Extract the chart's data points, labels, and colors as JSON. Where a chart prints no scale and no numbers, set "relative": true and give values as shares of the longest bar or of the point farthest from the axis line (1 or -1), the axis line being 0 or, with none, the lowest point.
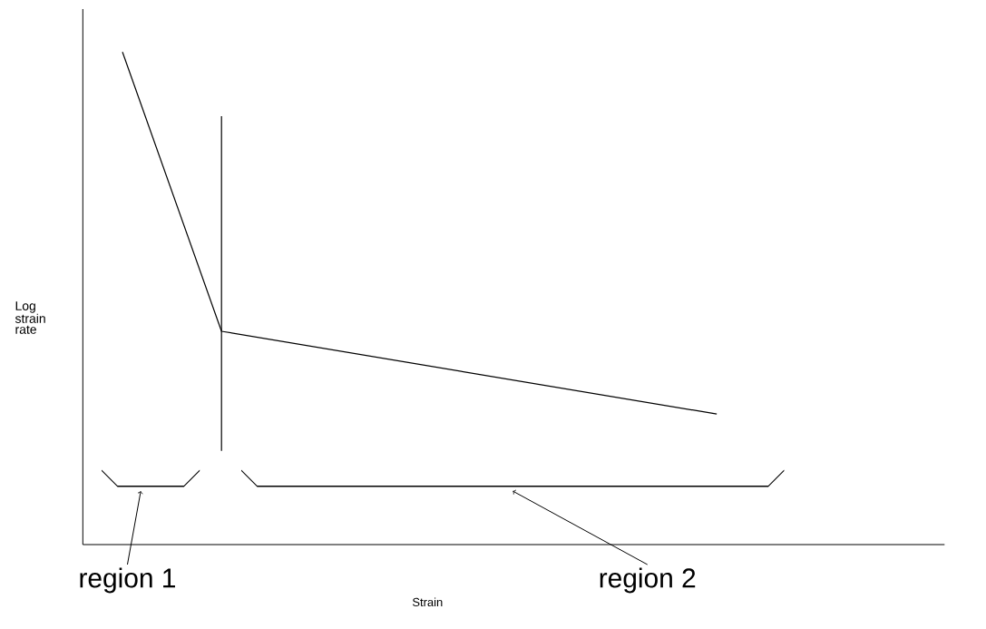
{
  "chart_data": {
    "type": "line",
    "relative": true,
    "xlabel": "Strain",
    "ylabel": "Log strain rate",
    "categories": [
      null,
      null,
      null,
      null,
      null,
      null,
      null
    ],
    "series": [
      {
        "color": "#000000",
        "values": [
          1,
          0.433,
          null,
          null,
          null,
          null,
          0.265
        ]
      }
    ],
    "annotations": [
      "region 1",
      "region 2"
    ]
  }
}
